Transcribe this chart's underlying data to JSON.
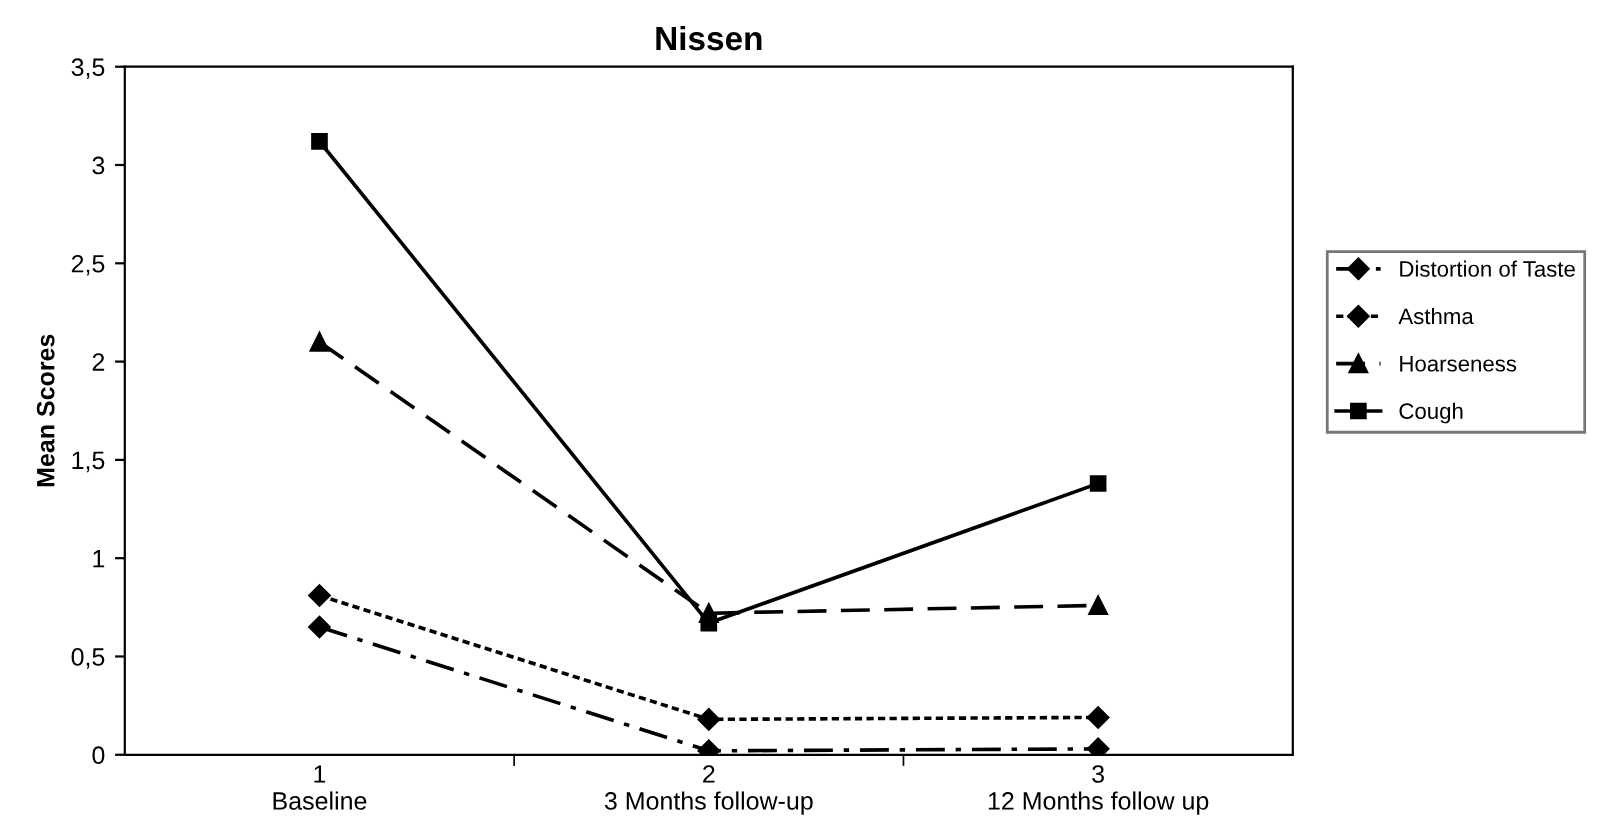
{
  "chart_data": {
    "type": "line",
    "title": "Nissen",
    "ylabel": "Mean Scores",
    "categories": [
      "1\nBaseline",
      "2\n3 Months follow-up",
      "3\n12 Months follow up"
    ],
    "series": [
      {
        "name": "Distortion of Taste",
        "color": "#000000",
        "marker": "diamond",
        "line_style": "dashdot",
        "values": [
          0.65,
          0.02,
          0.03
        ]
      },
      {
        "name": "Asthma",
        "color": "#000000",
        "marker": "diamond",
        "line_style": "dotted",
        "values": [
          0.81,
          0.18,
          0.19
        ]
      },
      {
        "name": "Hoarseness",
        "color": "#000000",
        "marker": "triangle",
        "line_style": "dashed",
        "values": [
          2.1,
          0.72,
          0.76
        ]
      },
      {
        "name": "Cough",
        "color": "#000000",
        "marker": "square",
        "line_style": "solid",
        "values": [
          3.12,
          0.67,
          1.38
        ]
      }
    ],
    "ylim": [
      0,
      3.5
    ],
    "yticks": [
      0,
      {
        "value": 0.5,
        "label": "0,5"
      },
      1,
      {
        "value": 1.5,
        "label": "1,5"
      },
      2,
      {
        "value": 2.5,
        "label": "2,5"
      },
      3,
      {
        "value": 3.5,
        "label": "3,5"
      }
    ],
    "grid": false,
    "legend": "right"
  }
}
